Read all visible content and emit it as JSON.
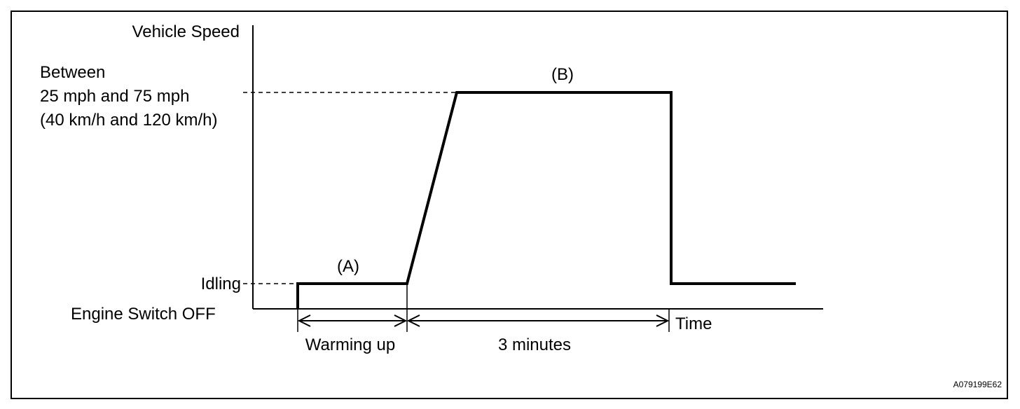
{
  "labels": {
    "y_axis": "Vehicle Speed",
    "speed_line1": "Between",
    "speed_line2": "25 mph and 75 mph",
    "speed_line3": "(40 km/h and 120 km/h)",
    "idling": "Idling",
    "engine_off": "Engine Switch OFF",
    "phase_a": "(A)",
    "phase_b": "(B)",
    "warming_up": "Warming up",
    "three_minutes": "3 minutes",
    "time": "Time",
    "figure_id": "A079199E62"
  }
}
